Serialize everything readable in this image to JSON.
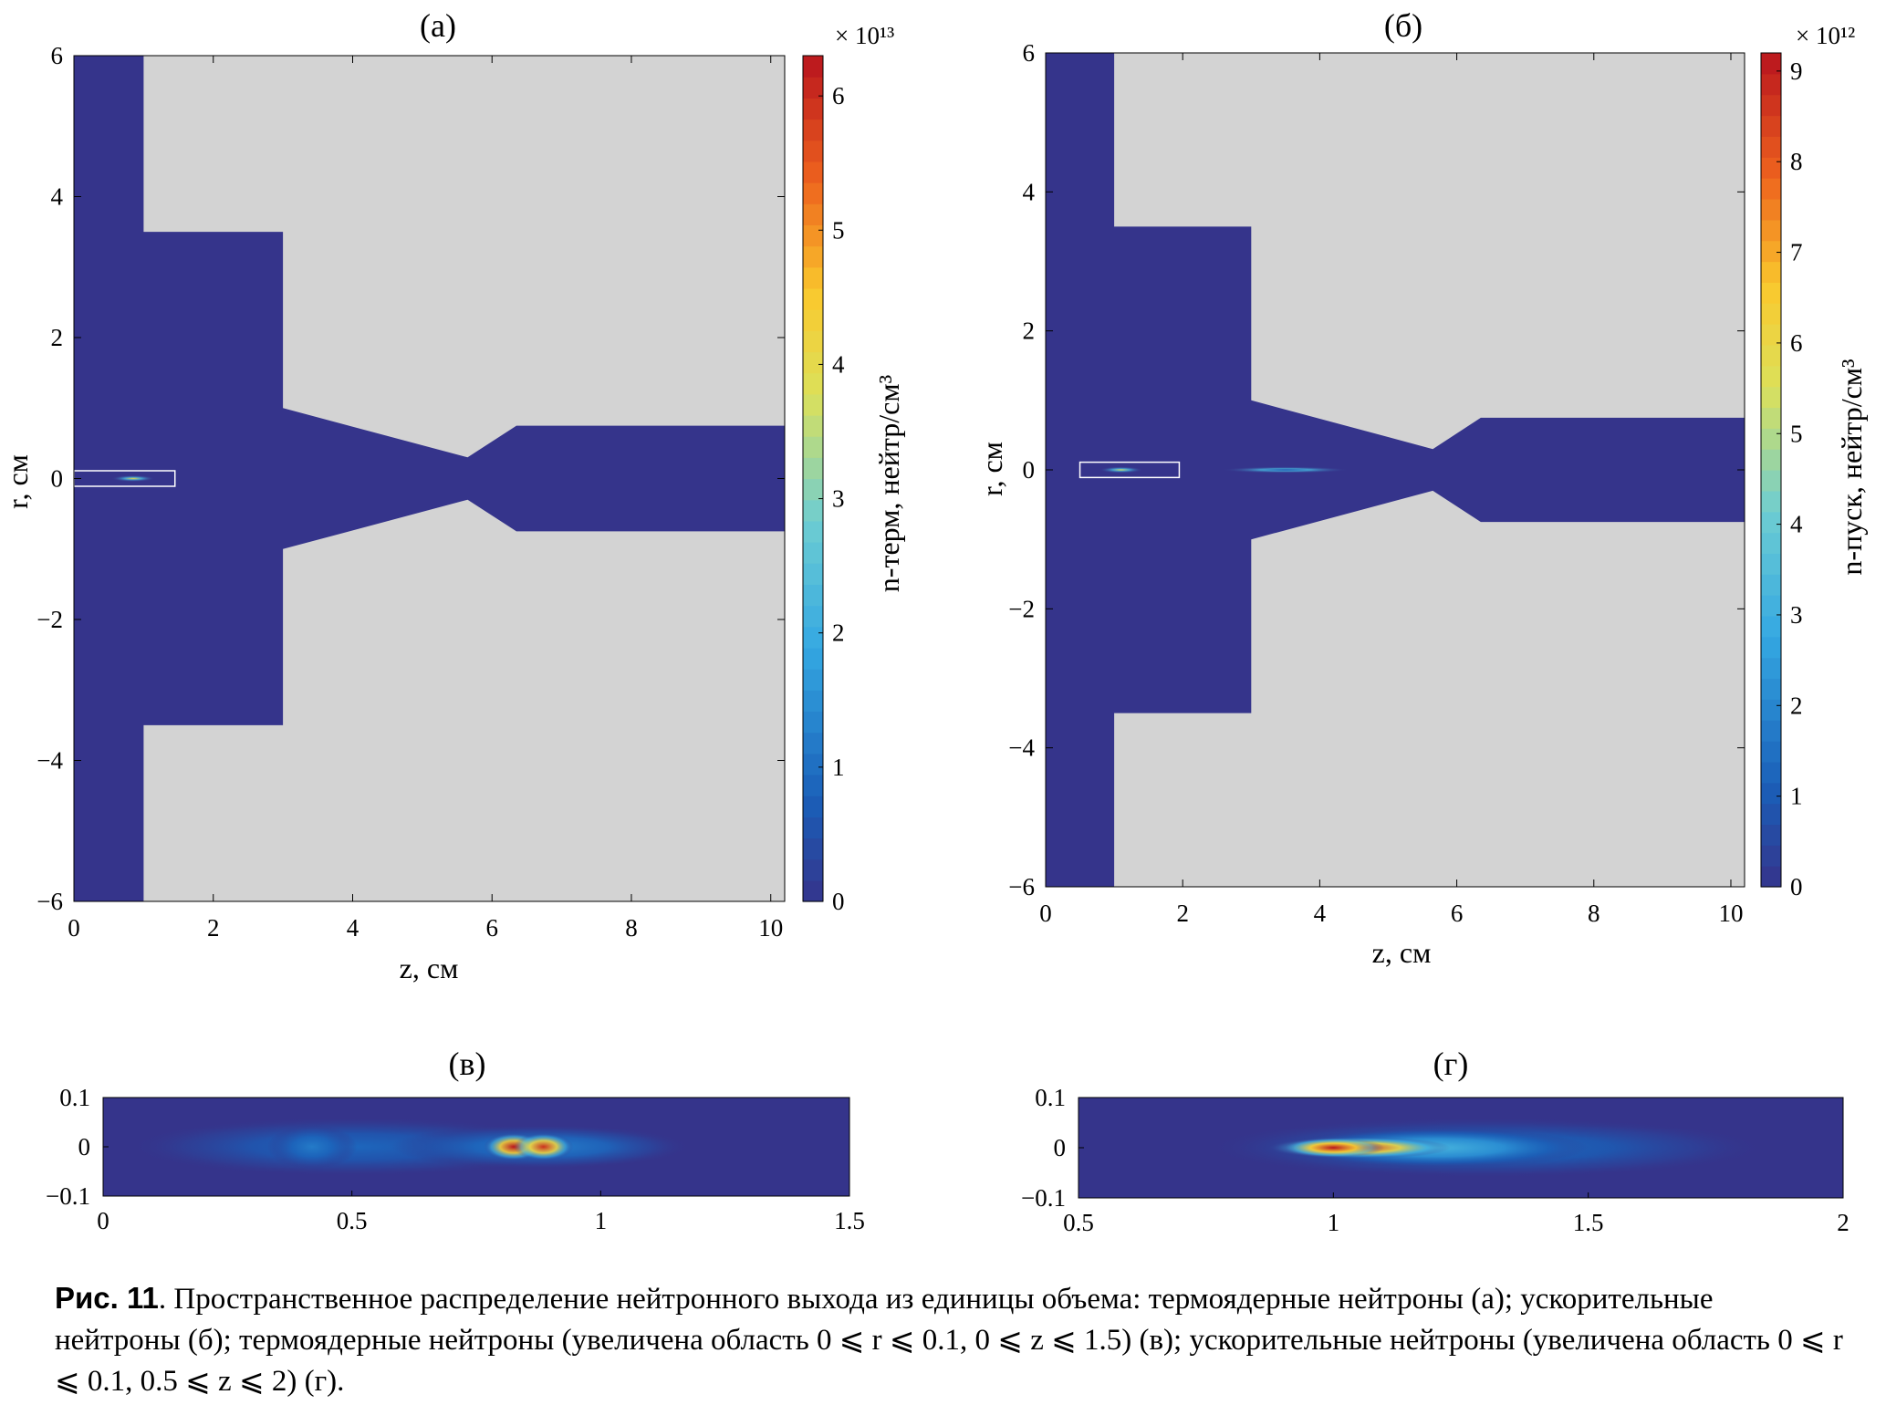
{
  "chart_data": [
    {
      "type": "heatmap",
      "title": "(а)",
      "xlabel": "z, см",
      "ylabel": "r, см",
      "xlim": [
        0,
        10.2
      ],
      "ylim": [
        -6,
        6
      ],
      "xticks": [
        0,
        2,
        4,
        6,
        8,
        10
      ],
      "yticks": [
        -6,
        -4,
        -2,
        0,
        2,
        4,
        6
      ],
      "background_color": "#d3d3d3",
      "region_color": "#35348b",
      "region_outline": [
        [
          0,
          6
        ],
        [
          1,
          6
        ],
        [
          1,
          3.5
        ],
        [
          3,
          3.5
        ],
        [
          3,
          1
        ],
        [
          5.65,
          0.3
        ],
        [
          6.35,
          0.75
        ],
        [
          10.2,
          0.75
        ],
        [
          10.2,
          -0.75
        ],
        [
          6.35,
          -0.75
        ],
        [
          5.65,
          -0.3
        ],
        [
          3,
          -1
        ],
        [
          3,
          -3.5
        ],
        [
          1,
          -3.5
        ],
        [
          1,
          -6
        ],
        [
          0,
          -6
        ]
      ],
      "zoom_box": {
        "z": [
          0,
          1.45
        ],
        "r": [
          -0.1,
          0.1
        ]
      },
      "hotspots": [
        {
          "z": 0.85,
          "r": 0,
          "intensity": 1.0
        }
      ],
      "colorbar": {
        "label": "n-терм, нейтр/см³",
        "exponent": "× 10¹³",
        "lim": [
          0,
          6.3
        ],
        "ticks": [
          0,
          1,
          2,
          3,
          4,
          5,
          6
        ]
      }
    },
    {
      "type": "heatmap",
      "title": "(б)",
      "xlabel": "z, см",
      "ylabel": "r, см",
      "xlim": [
        0,
        10.2
      ],
      "ylim": [
        -6,
        6
      ],
      "xticks": [
        0,
        2,
        4,
        6,
        8,
        10
      ],
      "yticks": [
        -6,
        -4,
        -2,
        0,
        2,
        4,
        6
      ],
      "background_color": "#d3d3d3",
      "region_color": "#35348b",
      "region_outline": [
        [
          0,
          6
        ],
        [
          1,
          6
        ],
        [
          1,
          3.5
        ],
        [
          3,
          3.5
        ],
        [
          3,
          1
        ],
        [
          5.65,
          0.3
        ],
        [
          6.35,
          0.75
        ],
        [
          10.2,
          0.75
        ],
        [
          10.2,
          -0.75
        ],
        [
          6.35,
          -0.75
        ],
        [
          5.65,
          -0.3
        ],
        [
          3,
          -1
        ],
        [
          3,
          -3.5
        ],
        [
          1,
          -3.5
        ],
        [
          1,
          -6
        ],
        [
          0,
          -6
        ]
      ],
      "zoom_box": {
        "z": [
          0.5,
          1.95
        ],
        "r": [
          -0.1,
          0.1
        ]
      },
      "hotspots": [
        {
          "z": 1.1,
          "r": 0,
          "intensity": 0.9
        },
        {
          "z": 3.5,
          "r": 0,
          "intensity": 0.15
        }
      ],
      "colorbar": {
        "label": "n-пуск, нейтр/см³",
        "exponent": "× 10¹²",
        "lim": [
          0,
          9.2
        ],
        "ticks": [
          0,
          1,
          2,
          3,
          4,
          5,
          6,
          7,
          8,
          9
        ]
      }
    },
    {
      "type": "heatmap",
      "title": "(в)",
      "xlim": [
        0,
        1.5
      ],
      "ylim": [
        -0.1,
        0.1
      ],
      "xticks": [
        0,
        0.5,
        1,
        1.5
      ],
      "ytick_labels": [
        "0.1",
        "0",
        "−0.1"
      ],
      "xtick_labels": [
        "0",
        "0.5",
        "1",
        "1.5"
      ],
      "blobs": [
        {
          "z": 0.5,
          "r": 0,
          "wz": 0.45,
          "wr": 0.06,
          "v": 0.14
        },
        {
          "z": 0.42,
          "r": 0,
          "wz": 0.09,
          "wr": 0.045,
          "v": 0.19
        },
        {
          "z": 0.88,
          "r": 0,
          "wz": 0.3,
          "wr": 0.045,
          "v": 0.2
        },
        {
          "z": 0.825,
          "r": 0,
          "wz": 0.06,
          "wr": 0.028,
          "v": 1.0
        },
        {
          "z": 0.885,
          "r": 0,
          "wz": 0.06,
          "wr": 0.028,
          "v": 0.95
        }
      ]
    },
    {
      "type": "heatmap",
      "title": "(г)",
      "xlim": [
        0.5,
        2
      ],
      "ylim": [
        -0.1,
        0.1
      ],
      "xticks": [
        0.5,
        1,
        1.5,
        2
      ],
      "ytick_labels": [
        "0.1",
        "0",
        "−0.1"
      ],
      "xtick_labels": [
        "0.5",
        "1",
        "1.5",
        "2"
      ],
      "blobs": [
        {
          "z": 1.3,
          "r": 0,
          "wz": 0.55,
          "wr": 0.06,
          "v": 0.15
        },
        {
          "z": 1.2,
          "r": 0,
          "wz": 0.3,
          "wr": 0.04,
          "v": 0.35
        },
        {
          "z": 1.05,
          "r": 0,
          "wz": 0.18,
          "wr": 0.022,
          "v": 0.95
        },
        {
          "z": 1.0,
          "r": 0,
          "wz": 0.1,
          "wr": 0.02,
          "v": 1.0
        }
      ]
    }
  ],
  "caption": {
    "figure_number": "Рис. 11",
    "text": ". Пространственное распределение нейтронного выхода из единицы объема: термоядерные нейтроны (а); ускорительные нейтроны (б); термоядерные нейтроны (увеличена область 0 ⩽ r ⩽ 0.1, 0 ⩽ z ⩽ 1.5) (в); ускорительные нейтроны (увеличена область 0 ⩽ r ⩽ 0.1, 0.5 ⩽ z ⩽ 2) (г)."
  }
}
